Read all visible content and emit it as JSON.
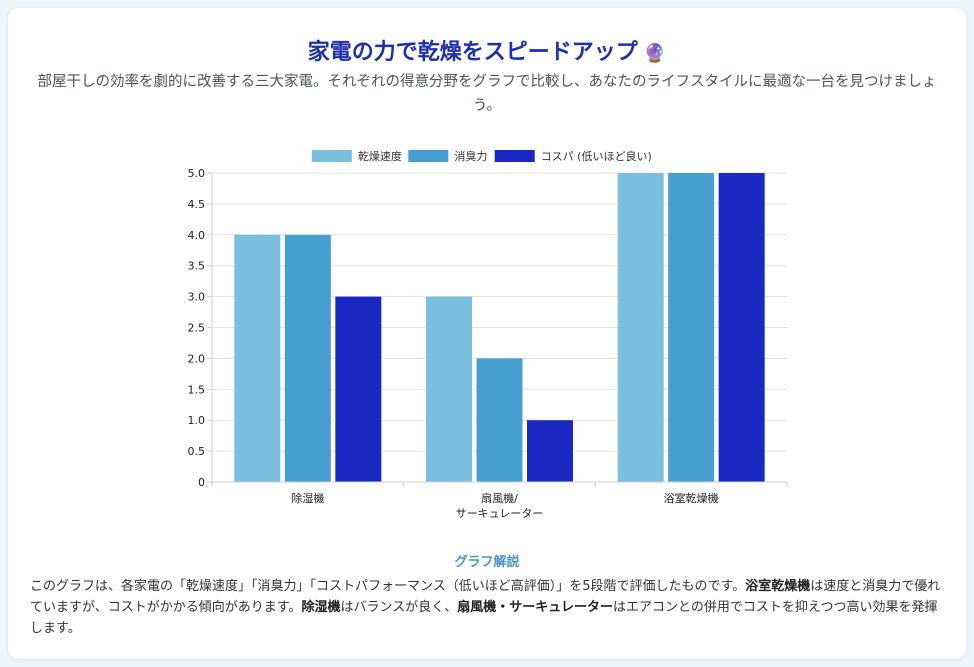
{
  "header": {
    "title": "家電の力で乾燥をスピードアップ",
    "title_icon": "crystal-ball-icon",
    "subtitle": "部屋干しの効率を劇的に改善する三大家電。それぞれの得意分野をグラフで比較し、あなたのライフスタイルに最適な一台を見つけましょう。"
  },
  "chart_data": {
    "type": "bar",
    "categories": [
      [
        "除湿機"
      ],
      [
        "扇風機/",
        "サーキュレーター"
      ],
      [
        "浴室乾燥機"
      ]
    ],
    "series": [
      {
        "name": "乾燥速度",
        "color": "#7bbfdf",
        "values": [
          4,
          3,
          5
        ]
      },
      {
        "name": "消臭力",
        "color": "#469fd0",
        "values": [
          4,
          2,
          5
        ]
      },
      {
        "name": "コスパ (低いほど良い)",
        "color": "#1a28c2",
        "values": [
          3,
          1,
          5
        ]
      }
    ],
    "ylim": [
      0,
      5
    ],
    "yticks": [
      "0",
      "0.5",
      "1.0",
      "1.5",
      "2.0",
      "2.5",
      "3.0",
      "3.5",
      "4.0",
      "4.5",
      "5.0"
    ],
    "grid": true,
    "legend_position": "top"
  },
  "explanation": {
    "heading": "グラフ解説",
    "parts": [
      {
        "text": "このグラフは、各家電の「乾燥速度」「消臭力」「コストパフォーマンス（低いほど高評価）」を5段階で評価したものです。",
        "bold": false
      },
      {
        "text": "浴室乾燥機",
        "bold": true
      },
      {
        "text": "は速度と消臭力で優れていますが、コストがかかる傾向があります。",
        "bold": false
      },
      {
        "text": "除湿機",
        "bold": true
      },
      {
        "text": "はバランスが良く、",
        "bold": false
      },
      {
        "text": "扇風機・サーキュレーター",
        "bold": true
      },
      {
        "text": "はエアコンとの併用でコストを抑えつつ高い効果を発揮します。",
        "bold": false
      }
    ]
  }
}
